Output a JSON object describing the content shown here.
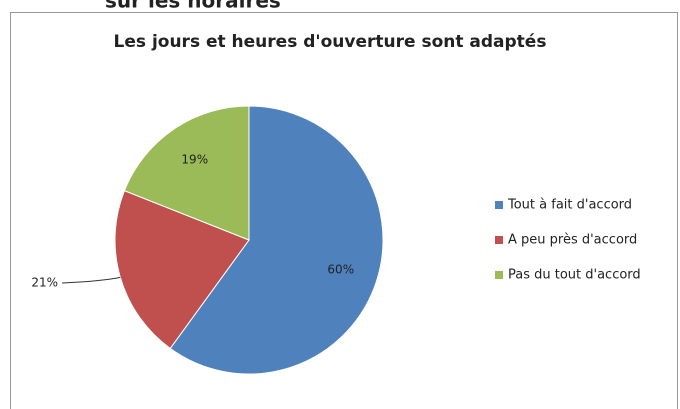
{
  "heading": "sur les horaires",
  "chart_data": {
    "type": "pie",
    "title": "Les jours et heures d'ouverture sont adaptés",
    "categories": [
      "Tout à fait d'accord",
      "A peu près d'accord",
      "Pas du tout d'accord"
    ],
    "values": [
      60,
      21,
      19
    ],
    "value_labels": [
      "60%",
      "21%",
      "19%"
    ],
    "colors": [
      "#4f81bd",
      "#c0504d",
      "#9bbb59"
    ],
    "legend": "right"
  }
}
